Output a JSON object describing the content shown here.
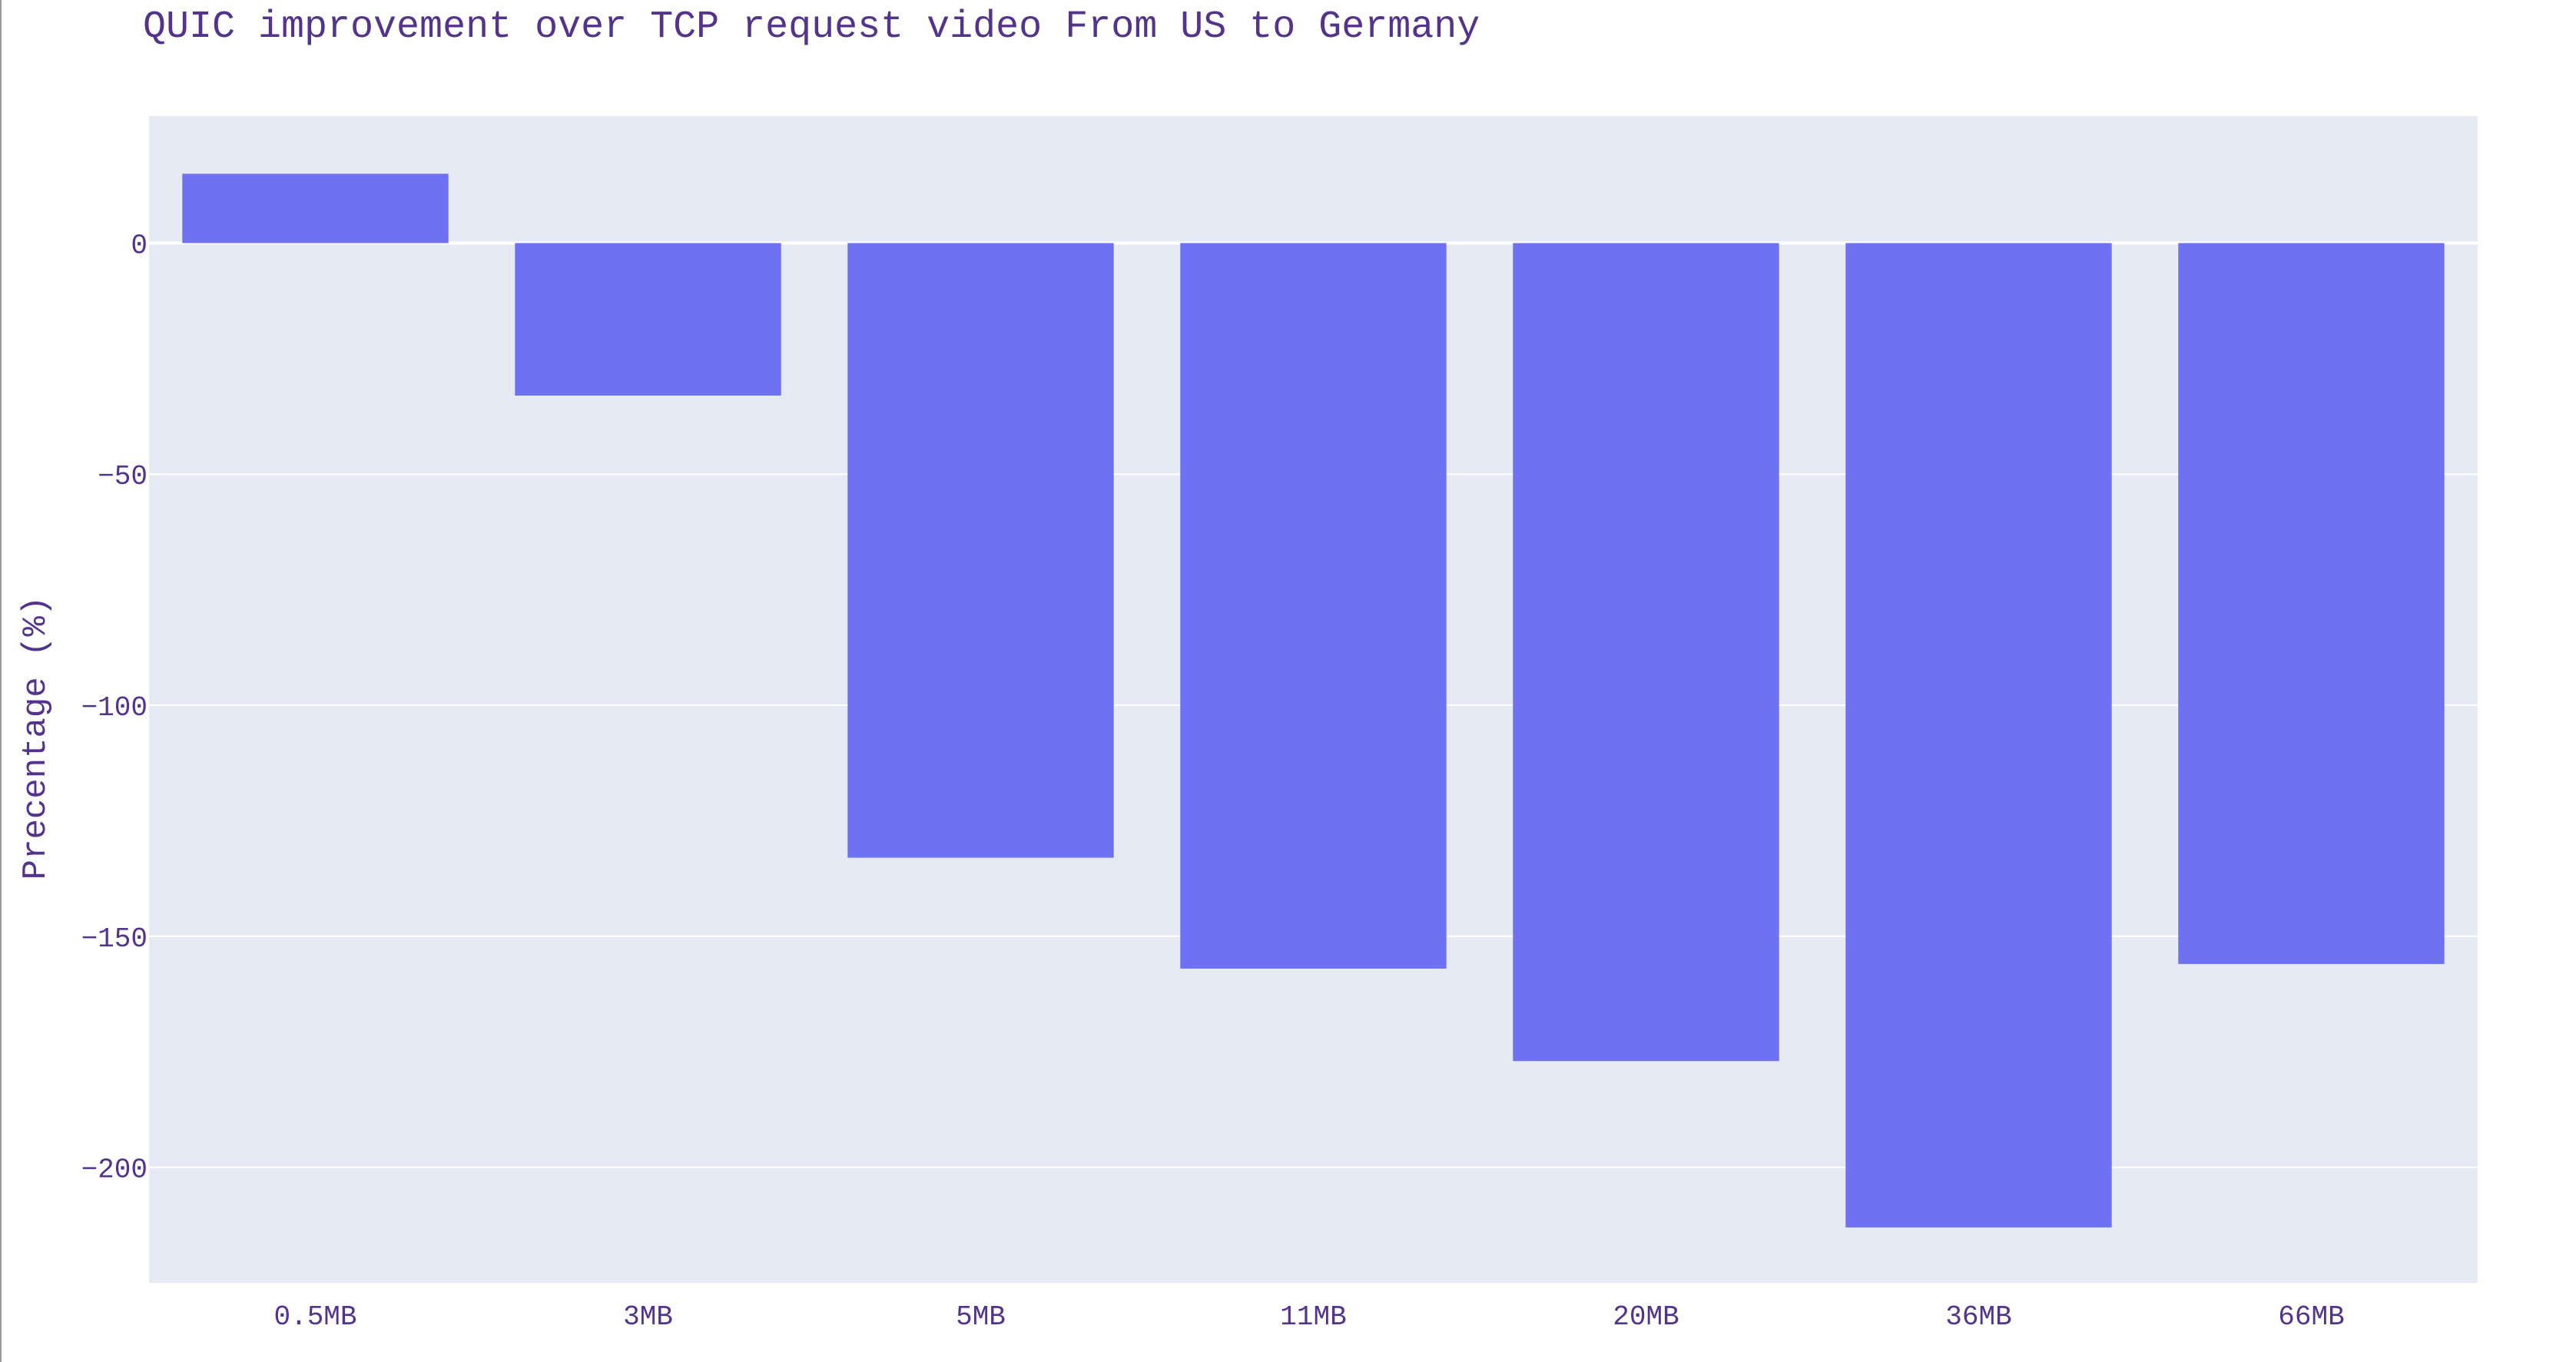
{
  "chart_data": {
    "type": "bar",
    "title": "QUIC improvement over TCP request video From US to Germany",
    "xlabel": "",
    "ylabel": "Precentage (%)",
    "categories": [
      "0.5MB",
      "3MB",
      "5MB",
      "11MB",
      "20MB",
      "36MB",
      "66MB"
    ],
    "values": [
      15,
      -33,
      -133,
      -157,
      -177,
      -213,
      -156
    ],
    "yticks": [
      0,
      -50,
      -100,
      -150,
      -200
    ],
    "ytick_labels": [
      "0",
      "−50",
      "−100",
      "−150",
      "−200"
    ],
    "ylim": [
      -225,
      27.5
    ],
    "grid": true,
    "legend": "none",
    "colors": {
      "bar": "#6e72f2",
      "plot_background": "#e6eaf5",
      "grid": "#ffffff",
      "text": "#53338b"
    }
  }
}
